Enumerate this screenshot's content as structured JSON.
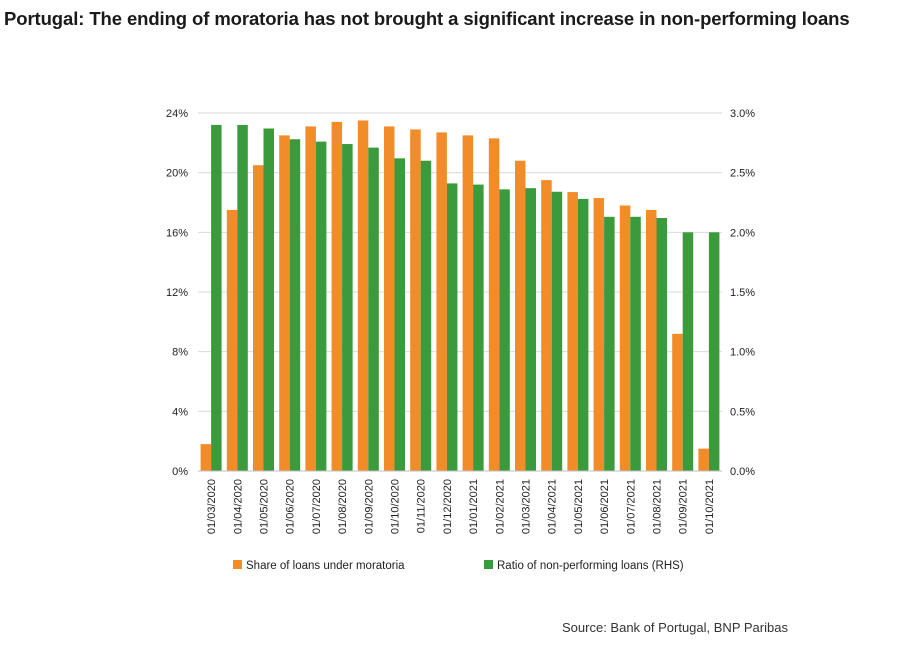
{
  "title": "Portugal: The ending of moratoria has not brought a significant increase in non-performing loans",
  "source": "Source: Bank of Portugal, BNP Paribas",
  "chart_data": {
    "type": "bar",
    "categories": [
      "01/03/2020",
      "01/04/2020",
      "01/05/2020",
      "01/06/2020",
      "01/07/2020",
      "01/08/2020",
      "01/09/2020",
      "01/10/2020",
      "01/11/2020",
      "01/12/2020",
      "01/01/2021",
      "01/02/2021",
      "01/03/2021",
      "01/04/2021",
      "01/05/2021",
      "01/06/2021",
      "01/07/2021",
      "01/08/2021",
      "01/09/2021",
      "01/10/2021"
    ],
    "series": [
      {
        "name": "Share of loans under moratoria",
        "axis": "left",
        "color": "#f28c28",
        "values": [
          1.8,
          17.5,
          20.5,
          22.5,
          23.1,
          23.4,
          23.5,
          23.1,
          22.9,
          22.7,
          22.5,
          22.3,
          20.8,
          19.5,
          18.7,
          18.3,
          17.8,
          17.5,
          9.2,
          1.5
        ]
      },
      {
        "name": "Ratio of non-performing loans (RHS)",
        "axis": "right",
        "color": "#3a9a3c",
        "values": [
          2.9,
          2.9,
          2.87,
          2.78,
          2.76,
          2.74,
          2.71,
          2.62,
          2.6,
          2.41,
          2.4,
          2.36,
          2.37,
          2.34,
          2.28,
          2.13,
          2.13,
          2.12,
          2.0,
          2.0
        ]
      }
    ],
    "yleft": {
      "lim": [
        0,
        24
      ],
      "ticks": [
        0,
        4,
        8,
        12,
        16,
        20,
        24
      ],
      "tick_labels": [
        "0%",
        "4%",
        "8%",
        "12%",
        "16%",
        "20%",
        "24%"
      ]
    },
    "yright": {
      "lim": [
        0,
        3
      ],
      "ticks": [
        0,
        0.5,
        1,
        1.5,
        2,
        2.5,
        3
      ],
      "tick_labels": [
        "0.0%",
        "0.5%",
        "1.0%",
        "1.5%",
        "2.0%",
        "2.5%",
        "3.0%"
      ]
    },
    "grid": true,
    "legend": "bottom"
  }
}
